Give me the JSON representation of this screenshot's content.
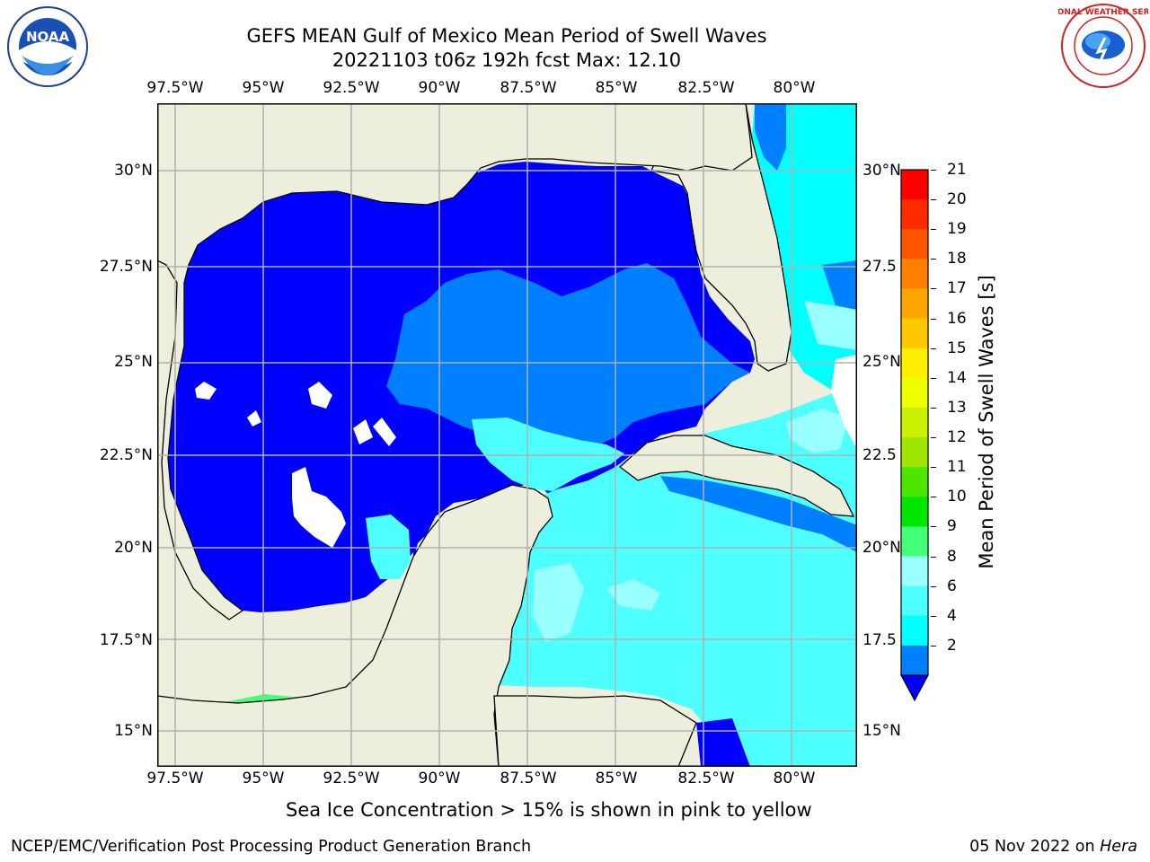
{
  "title_line1": "GEFS MEAN Gulf of Mexico Mean Period of Swell Waves",
  "title_line2": "20221103 t06z 192h fcst   Max: 12.10",
  "lon_ticks": [
    "97.5°W",
    "95°W",
    "92.5°W",
    "90°W",
    "87.5°W",
    "85°W",
    "82.5°W",
    "80°W"
  ],
  "lat_ticks_left": [
    "30°N",
    "27.5°N",
    "25°N",
    "22.5°N",
    "20°N",
    "17.5°N",
    "15°N"
  ],
  "lat_ticks_right": [
    "30°N",
    "27.5",
    "25°N",
    "22.5",
    "20°N",
    "17.5",
    "15°N"
  ],
  "colorbar": {
    "title": "Mean Period of Swell Waves [s]",
    "labels": [
      "21",
      "20",
      "19",
      "18",
      "17",
      "16",
      "15",
      "14",
      "13",
      "12",
      "11",
      "10",
      "9",
      "8",
      "6",
      "4",
      "2"
    ],
    "colors": [
      "#ff0000",
      "#ff2a00",
      "#ff5500",
      "#ff7f00",
      "#ffa500",
      "#ffc800",
      "#ffee00",
      "#eeff00",
      "#c8f000",
      "#a0e600",
      "#4ce600",
      "#00e600",
      "#44ff77",
      "#99ffff",
      "#4dffff",
      "#00ffff",
      "#0080ff"
    ],
    "extend_color": "#0000ff"
  },
  "colors": {
    "land": "#eeeedc",
    "sea_low": "#0000ff",
    "sea_mid": "#0080ff",
    "sea_cyan": "#00ffff",
    "sea_light": "#4dffff",
    "sea_pale": "#99ffff",
    "green": "#44ff77",
    "bright_green": "#00e600"
  },
  "logos": {
    "left": "NOAA",
    "right": "NATIONAL WEATHER SERVICE"
  },
  "caption": "Sea Ice Concentration > 15% is shown in pink to yellow",
  "footer_left": "NCEP/EMC/Verification Post Processing Product Generation Branch",
  "footer_date": "05 Nov 2022 on ",
  "footer_host": "Hera"
}
